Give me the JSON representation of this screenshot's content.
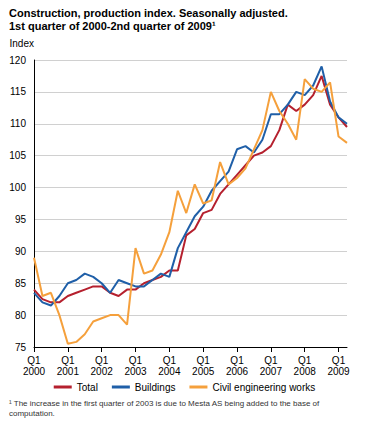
{
  "chart_data": {
    "type": "line",
    "title": "Construction, production index. Seasonally adjusted.",
    "subtitle": "1st quarter of 2000-2nd quarter of 2009¹",
    "y_label": "Index",
    "annotations": [
      "¹ The increase in the first quarter of 2003 is due to Mesta AS being added to the base of computation."
    ],
    "categories": [
      "Q1\n2000",
      null,
      null,
      null,
      "Q1\n2001",
      null,
      null,
      null,
      "Q1\n2002",
      null,
      null,
      null,
      "Q1\n2003",
      null,
      null,
      null,
      "Q1\n2004",
      null,
      null,
      null,
      "Q1\n2005",
      null,
      null,
      null,
      "Q1\n2006",
      null,
      null,
      null,
      "Q1\n2007",
      null,
      null,
      null,
      "Q1\n2008",
      null,
      null,
      null,
      "Q1\n2009",
      null
    ],
    "series": [
      {
        "name": "Total",
        "color": "#b5202e",
        "values": [
          84,
          82.5,
          82,
          82,
          83,
          83.5,
          84,
          84.5,
          84.5,
          83.5,
          83,
          84,
          84,
          85,
          85.5,
          86,
          87,
          87,
          92.5,
          93.5,
          96,
          96.5,
          99,
          100.5,
          102,
          103.5,
          105,
          105.5,
          106.5,
          109,
          113,
          112,
          113,
          114.5,
          117.5,
          113,
          111,
          109.5
        ]
      },
      {
        "name": "Buildings",
        "color": "#1f5fa8",
        "values": [
          83.5,
          82,
          81.5,
          83,
          85,
          85.5,
          86.5,
          86,
          85,
          83.5,
          85.5,
          85,
          84.5,
          84.5,
          85.5,
          86.5,
          86,
          90.5,
          93,
          95.5,
          97,
          99.5,
          101,
          102.5,
          106,
          106.5,
          105.5,
          107.5,
          111.5,
          111.5,
          113,
          115,
          114.5,
          116,
          119,
          113.5,
          111,
          110
        ]
      },
      {
        "name": "Civil engineering works",
        "color": "#f5a03c",
        "values": [
          89,
          83,
          83.5,
          80,
          75.5,
          75.8,
          77,
          79,
          79.5,
          80,
          80,
          78.5,
          90.5,
          86.5,
          87,
          89.5,
          93,
          99.5,
          96,
          100.5,
          97.5,
          98,
          104,
          100.5,
          101.5,
          103,
          106,
          109,
          115,
          112,
          110,
          107.5,
          117,
          115.5,
          115,
          116.5,
          108,
          107
        ]
      }
    ],
    "ylim": [
      75,
      120
    ],
    "yticks": [
      75,
      80,
      85,
      90,
      95,
      100,
      105,
      110,
      115,
      120
    ],
    "grid": true,
    "legend": "bottom"
  }
}
